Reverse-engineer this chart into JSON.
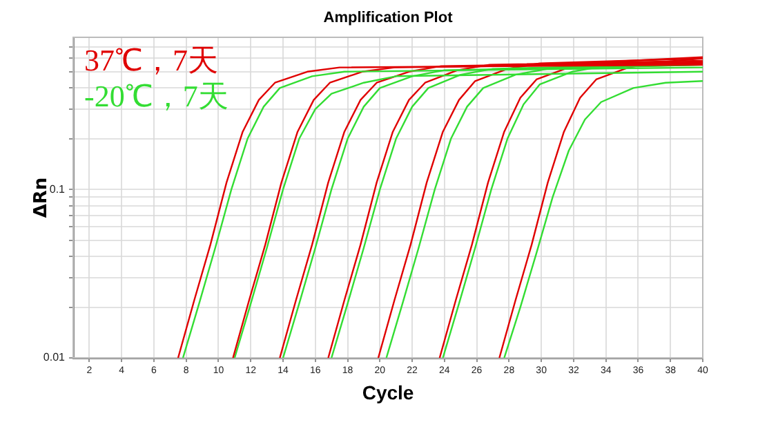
{
  "chart_data": {
    "type": "line",
    "title": "Amplification Plot",
    "xlabel": "Cycle",
    "ylabel": "ΔRn",
    "log": "y",
    "grid": true,
    "legend": "top left",
    "xlim": [
      1,
      40
    ],
    "xticks": [
      2,
      4,
      6,
      8,
      10,
      12,
      14,
      16,
      18,
      20,
      22,
      24,
      26,
      28,
      30,
      32,
      34,
      36,
      38,
      40
    ],
    "ylim": [
      0.01,
      0.8
    ],
    "yticks": [
      0.01,
      {
        "value": 0.02,
        "label": null
      },
      {
        "value": 0.03,
        "label": null
      },
      {
        "value": 0.04,
        "label": null
      },
      {
        "value": 0.05,
        "label": null
      },
      {
        "value": 0.06,
        "label": null
      },
      {
        "value": 0.07,
        "label": null
      },
      {
        "value": 0.08,
        "label": null
      },
      {
        "value": 0.09,
        "label": null
      },
      0.1,
      {
        "value": 0.2,
        "label": null
      },
      {
        "value": 0.3,
        "label": null
      },
      {
        "value": 0.4,
        "label": null
      },
      {
        "value": 0.5,
        "label": null
      },
      {
        "value": 0.6,
        "label": null
      },
      {
        "value": 0.7,
        "label": null
      }
    ],
    "series": [
      {
        "name": "37℃，7天",
        "color": "#e00000",
        "x": [
          7.5,
          8.5,
          9.5,
          10.5,
          11.5,
          12.5,
          13.5,
          15.5,
          17.5,
          40
        ],
        "values": [
          0.01,
          0.022,
          0.047,
          0.11,
          0.22,
          0.34,
          0.43,
          0.5,
          0.53,
          0.55
        ]
      },
      {
        "name": "-20℃，7天",
        "color": "#33dd33",
        "x": [
          7.8,
          8.8,
          9.8,
          10.8,
          11.8,
          12.8,
          13.8,
          15.8,
          17.8,
          40
        ],
        "values": [
          0.01,
          0.021,
          0.045,
          0.1,
          0.2,
          0.31,
          0.4,
          0.47,
          0.5,
          0.53
        ]
      },
      {
        "color": "#e00000",
        "x": [
          10.9,
          11.9,
          12.9,
          13.9,
          14.9,
          15.9,
          16.9,
          18.9,
          20.9,
          40
        ],
        "values": [
          0.01,
          0.022,
          0.047,
          0.11,
          0.22,
          0.34,
          0.43,
          0.5,
          0.53,
          0.56
        ]
      },
      {
        "color": "#33dd33",
        "x": [
          11,
          12,
          13,
          14,
          15,
          16,
          17,
          19,
          21,
          40
        ],
        "values": [
          0.01,
          0.021,
          0.045,
          0.1,
          0.2,
          0.3,
          0.37,
          0.43,
          0.47,
          0.5
        ]
      },
      {
        "color": "#e00000",
        "x": [
          13.8,
          14.8,
          15.8,
          16.8,
          17.8,
          18.8,
          19.8,
          21.8,
          23.8,
          40
        ],
        "values": [
          0.01,
          0.022,
          0.047,
          0.11,
          0.22,
          0.34,
          0.43,
          0.5,
          0.54,
          0.57
        ]
      },
      {
        "color": "#33dd33",
        "x": [
          14,
          15,
          16,
          17,
          18,
          19,
          20,
          22,
          24,
          40
        ],
        "values": [
          0.01,
          0.021,
          0.045,
          0.1,
          0.2,
          0.31,
          0.4,
          0.47,
          0.51,
          0.55
        ]
      },
      {
        "color": "#e00000",
        "x": [
          16.8,
          17.8,
          18.8,
          19.8,
          20.8,
          21.8,
          22.8,
          24.8,
          26.8,
          40
        ],
        "values": [
          0.01,
          0.022,
          0.047,
          0.11,
          0.22,
          0.34,
          0.43,
          0.51,
          0.55,
          0.58
        ]
      },
      {
        "color": "#33dd33",
        "x": [
          17,
          18,
          19,
          20,
          21,
          22,
          23,
          25,
          27,
          40
        ],
        "values": [
          0.01,
          0.021,
          0.045,
          0.1,
          0.2,
          0.31,
          0.4,
          0.48,
          0.52,
          0.56
        ]
      },
      {
        "color": "#e00000",
        "x": [
          19.9,
          20.9,
          21.9,
          22.9,
          23.9,
          24.9,
          25.9,
          27.9,
          29.9,
          40
        ],
        "values": [
          0.01,
          0.022,
          0.047,
          0.11,
          0.22,
          0.34,
          0.44,
          0.52,
          0.56,
          0.6
        ]
      },
      {
        "color": "#33dd33",
        "x": [
          20.4,
          21.4,
          22.4,
          23.4,
          24.4,
          25.4,
          26.4,
          28.4,
          30.4,
          40
        ],
        "values": [
          0.01,
          0.021,
          0.045,
          0.1,
          0.2,
          0.31,
          0.4,
          0.48,
          0.52,
          0.55
        ]
      },
      {
        "color": "#e00000",
        "x": [
          23.7,
          24.7,
          25.7,
          26.7,
          27.7,
          28.7,
          29.7,
          31.7,
          33.7,
          40
        ],
        "values": [
          0.01,
          0.022,
          0.047,
          0.11,
          0.22,
          0.35,
          0.45,
          0.53,
          0.57,
          0.61
        ]
      },
      {
        "color": "#33dd33",
        "x": [
          23.9,
          24.9,
          25.9,
          26.9,
          27.9,
          28.9,
          29.9,
          31.9,
          33.9,
          40
        ],
        "values": [
          0.01,
          0.021,
          0.045,
          0.1,
          0.2,
          0.32,
          0.42,
          0.5,
          0.54,
          0.57
        ]
      },
      {
        "color": "#e00000",
        "x": [
          27.4,
          28.4,
          29.4,
          30.4,
          31.4,
          32.4,
          33.4,
          35.4,
          37.4,
          40
        ],
        "values": [
          0.01,
          0.022,
          0.047,
          0.11,
          0.22,
          0.35,
          0.45,
          0.53,
          0.57,
          0.6
        ]
      },
      {
        "color": "#33dd33",
        "x": [
          27.7,
          28.7,
          29.7,
          30.7,
          31.7,
          32.7,
          33.7,
          35.7,
          37.7,
          40
        ],
        "values": [
          0.01,
          0.02,
          0.042,
          0.09,
          0.17,
          0.26,
          0.33,
          0.4,
          0.43,
          0.44
        ]
      }
    ]
  }
}
